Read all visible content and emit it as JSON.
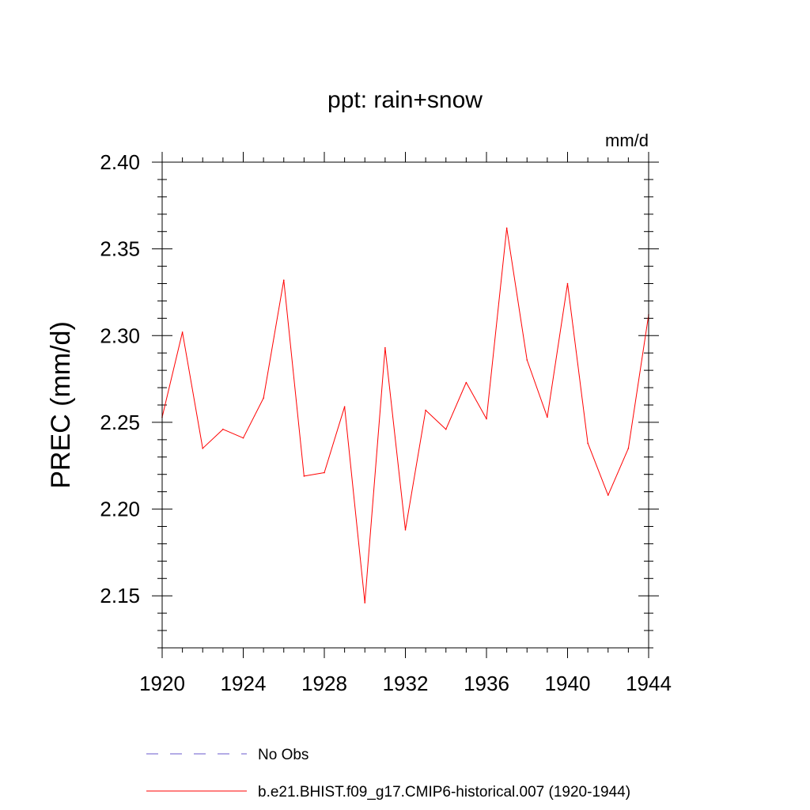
{
  "chart_data": {
    "type": "line",
    "title": "ppt: rain+snow",
    "units": "mm/d",
    "xlabel": "",
    "ylabel": "PREC  (mm/d)",
    "xlim": [
      1920,
      1944
    ],
    "ylim": [
      2.12,
      2.4
    ],
    "x_ticks": [
      1920,
      1924,
      1928,
      1932,
      1936,
      1940,
      1944
    ],
    "x_tick_labels": [
      "1920",
      "1924",
      "1928",
      "1932",
      "1936",
      "1940",
      "1944"
    ],
    "y_ticks": [
      2.15,
      2.2,
      2.25,
      2.3,
      2.35,
      2.4
    ],
    "y_tick_labels": [
      "2.15",
      "2.20",
      "2.25",
      "2.30",
      "2.35",
      "2.40"
    ],
    "grid": false,
    "series": [
      {
        "name": "b.e21.BHIST.f09_g17.CMIP6-historical.007 (1920-1944)",
        "color": "#ff0000",
        "style": "solid",
        "x": [
          1920,
          1921,
          1922,
          1923,
          1924,
          1925,
          1926,
          1927,
          1928,
          1929,
          1930,
          1931,
          1932,
          1933,
          1934,
          1935,
          1936,
          1937,
          1938,
          1939,
          1940,
          1941,
          1942,
          1943,
          1944
        ],
        "values": [
          2.253,
          2.302,
          2.235,
          2.246,
          2.241,
          2.264,
          2.332,
          2.219,
          2.221,
          2.259,
          2.146,
          2.293,
          2.188,
          2.257,
          2.246,
          2.273,
          2.252,
          2.362,
          2.286,
          2.253,
          2.33,
          2.238,
          2.208,
          2.235,
          2.312
        ]
      }
    ],
    "legend": {
      "placement": "bottom",
      "entries": [
        {
          "label": "No Obs",
          "color": "#6a5acd",
          "style": "dashed"
        },
        {
          "label": "b.e21.BHIST.f09_g17.CMIP6-historical.007 (1920-1944)",
          "color": "#ff0000",
          "style": "solid"
        }
      ]
    }
  }
}
